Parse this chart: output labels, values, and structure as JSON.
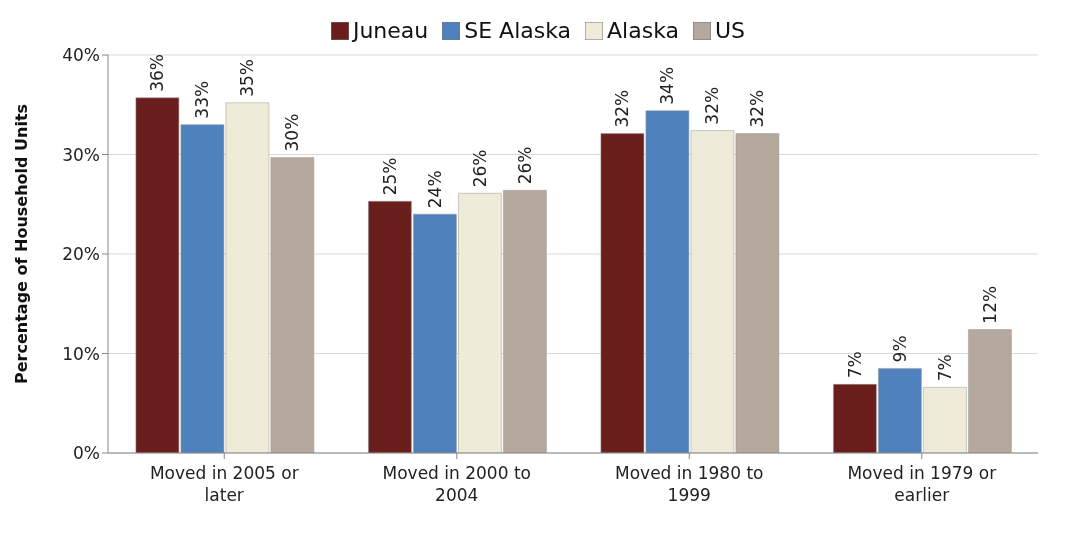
{
  "chart_data": {
    "type": "bar",
    "ylabel": "Percentage of Household Units",
    "categories": [
      "Moved in 2005 or later",
      "Moved in 2000 to 2004",
      "Moved in 1980 to 1999",
      "Moved in 1979 or earlier"
    ],
    "series": [
      {
        "name": "Juneau",
        "color": "#6b1f1c",
        "values": [
          35.7,
          25.3,
          32.1,
          6.9
        ],
        "value_labels": [
          "36%",
          "25%",
          "32%",
          "7%"
        ]
      },
      {
        "name": "SE Alaska",
        "color": "#4f81bd",
        "values": [
          33.0,
          24.0,
          34.4,
          8.5
        ],
        "value_labels": [
          "33%",
          "24%",
          "34%",
          "9%"
        ]
      },
      {
        "name": "Alaska",
        "color": "#eeecd8",
        "values": [
          35.2,
          26.1,
          32.4,
          6.6
        ],
        "value_labels": [
          "35%",
          "26%",
          "32%",
          "7%"
        ]
      },
      {
        "name": "US",
        "color": "#b5a89c",
        "values": [
          29.7,
          26.4,
          32.1,
          12.4
        ],
        "value_labels": [
          "30%",
          "26%",
          "32%",
          "12%"
        ]
      }
    ],
    "ylim": [
      0,
      40
    ],
    "yticks": [
      {
        "value": 0,
        "label": "0%"
      },
      {
        "value": 10,
        "label": "10%"
      },
      {
        "value": 20,
        "label": "20%"
      },
      {
        "value": 30,
        "label": "30%"
      },
      {
        "value": 40,
        "label": "40%"
      }
    ],
    "grid": "y",
    "legend": "top"
  }
}
